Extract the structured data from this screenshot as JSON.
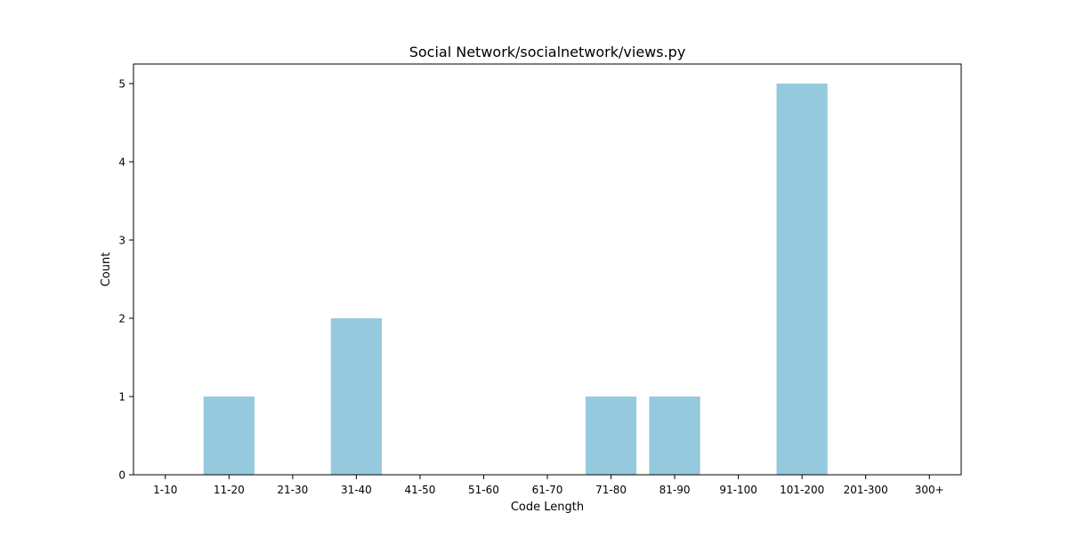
{
  "chart_data": {
    "type": "bar",
    "title": "Social Network/socialnetwork/views.py",
    "xlabel": "Code Length",
    "ylabel": "Count",
    "categories": [
      "1-10",
      "11-20",
      "21-30",
      "31-40",
      "41-50",
      "51-60",
      "61-70",
      "71-80",
      "81-90",
      "91-100",
      "101-200",
      "201-300",
      "300+"
    ],
    "values": [
      0,
      1,
      0,
      2,
      0,
      0,
      0,
      1,
      1,
      0,
      5,
      0,
      0
    ],
    "ylim": [
      0,
      5.25
    ],
    "yticks": [
      "0",
      "1",
      "2",
      "3",
      "4",
      "5"
    ],
    "grid": false,
    "bar_color": "#95c9dd"
  }
}
